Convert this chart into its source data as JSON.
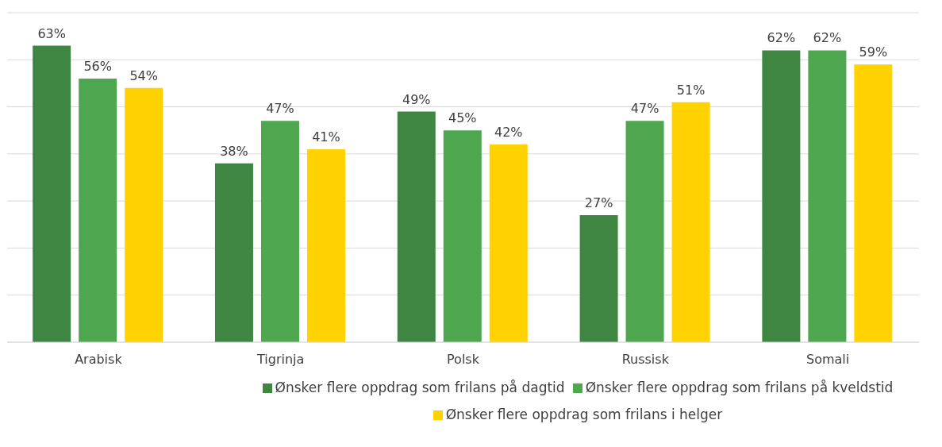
{
  "chart_data": {
    "type": "bar",
    "categories": [
      "Arabisk",
      "Tigrinja",
      "Polsk",
      "Russisk",
      "Somali"
    ],
    "series": [
      {
        "name": "Ønsker flere oppdrag som frilans på dagtid",
        "color": "#3f8642",
        "values": [
          63,
          38,
          49,
          27,
          62
        ],
        "value_labels": [
          "63%",
          "38%",
          "49%",
          "27%",
          "62%"
        ]
      },
      {
        "name": "Ønsker flere oppdrag som frilans på kveldstid",
        "color": "#4ea64f",
        "values": [
          56,
          47,
          45,
          47,
          62
        ],
        "value_labels": [
          "56%",
          "47%",
          "45%",
          "47%",
          "62%"
        ]
      },
      {
        "name": "Ønsker flere oppdrag som frilans i helger",
        "color": "#ffd200",
        "values": [
          54,
          41,
          42,
          51,
          59
        ],
        "value_labels": [
          "54%",
          "41%",
          "42%",
          "51%",
          "59%"
        ]
      }
    ],
    "ylim": [
      0,
      70
    ],
    "tick_labels": "x",
    "grid": "y",
    "legend": "bottom"
  }
}
